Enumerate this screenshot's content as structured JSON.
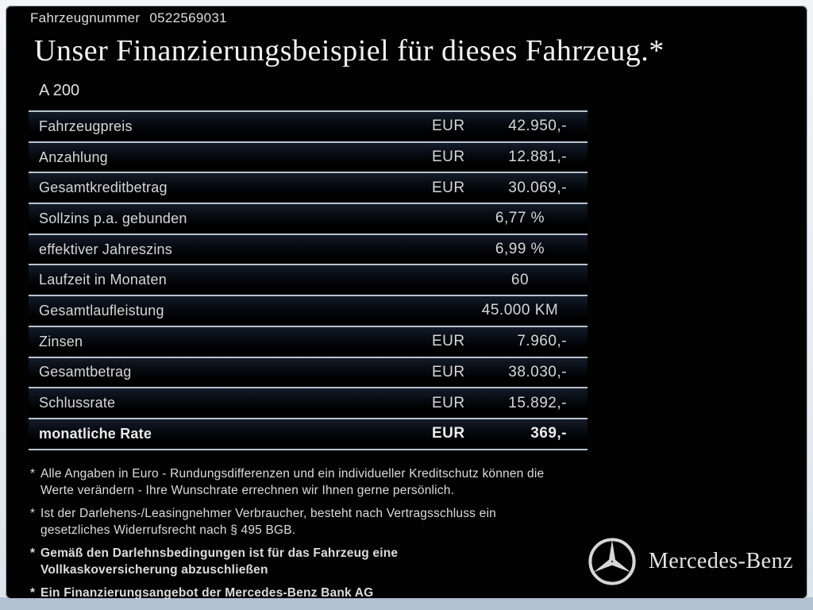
{
  "header": {
    "vehicle_number_label": "Fahrzeugnummer",
    "vehicle_number": "0522569031",
    "title": "Unser Finanzierungsbeispiel für dieses Fahrzeug.*",
    "model": "A 200"
  },
  "table": {
    "rows": [
      {
        "label": "Fahrzeugpreis",
        "currency": "EUR",
        "value": "42.950,-"
      },
      {
        "label": "Anzahlung",
        "currency": "EUR",
        "value": "12.881,-"
      },
      {
        "label": "Gesamtkreditbetrag",
        "currency": "EUR",
        "value": "30.069,-"
      },
      {
        "label": "Sollzins p.a. gebunden",
        "value": "6,77 %",
        "center": true
      },
      {
        "label": "effektiver Jahreszins",
        "value": "6,99 %",
        "center": true
      },
      {
        "label": "Laufzeit in Monaten",
        "value": "60",
        "center": true
      },
      {
        "label": "Gesamtlaufleistung",
        "value": "45.000 KM",
        "center": true
      },
      {
        "label": "Zinsen",
        "currency": "EUR",
        "value": "7.960,-"
      },
      {
        "label": "Gesamtbetrag",
        "currency": "EUR",
        "value": "38.030,-"
      },
      {
        "label": "Schlussrate",
        "currency": "EUR",
        "value": "15.892,-"
      },
      {
        "label": "monatliche Rate",
        "currency": "EUR",
        "value": "369,-",
        "bold": true
      }
    ]
  },
  "footnotes": [
    {
      "marker": "*",
      "bold": false,
      "lines": [
        "Alle Angaben in Euro - Rundungsdifferenzen und ein individueller Kreditschutz können die",
        "Werte verändern - Ihre Wunschrate errechnen wir Ihnen gerne persönlich."
      ]
    },
    {
      "marker": "*",
      "bold": false,
      "lines": [
        "Ist der Darlehens-/Leasingnehmer Verbraucher, besteht nach Vertragsschluss ein",
        "gesetzliches Widerrufsrecht nach § 495 BGB."
      ]
    },
    {
      "marker": "*",
      "bold": true,
      "lines": [
        "Gemäß den Darlehnsbedingungen ist für das Fahrzeug eine",
        "Vollkaskoversicherung abzuschließen"
      ]
    },
    {
      "marker": "*",
      "bold": true,
      "lines": [
        "Ein Finanzierungsangebot der Mercedes-Benz Bank AG"
      ]
    }
  ],
  "brand": {
    "logo_icon": "mercedes-star-icon",
    "name": "Mercedes-Benz"
  },
  "colors": {
    "panel_background": "#020202",
    "frame": "#e9edf1",
    "bottom_strip": "#b3c2d3",
    "text": "#d9d9d9",
    "separator": "#bac4d0"
  }
}
